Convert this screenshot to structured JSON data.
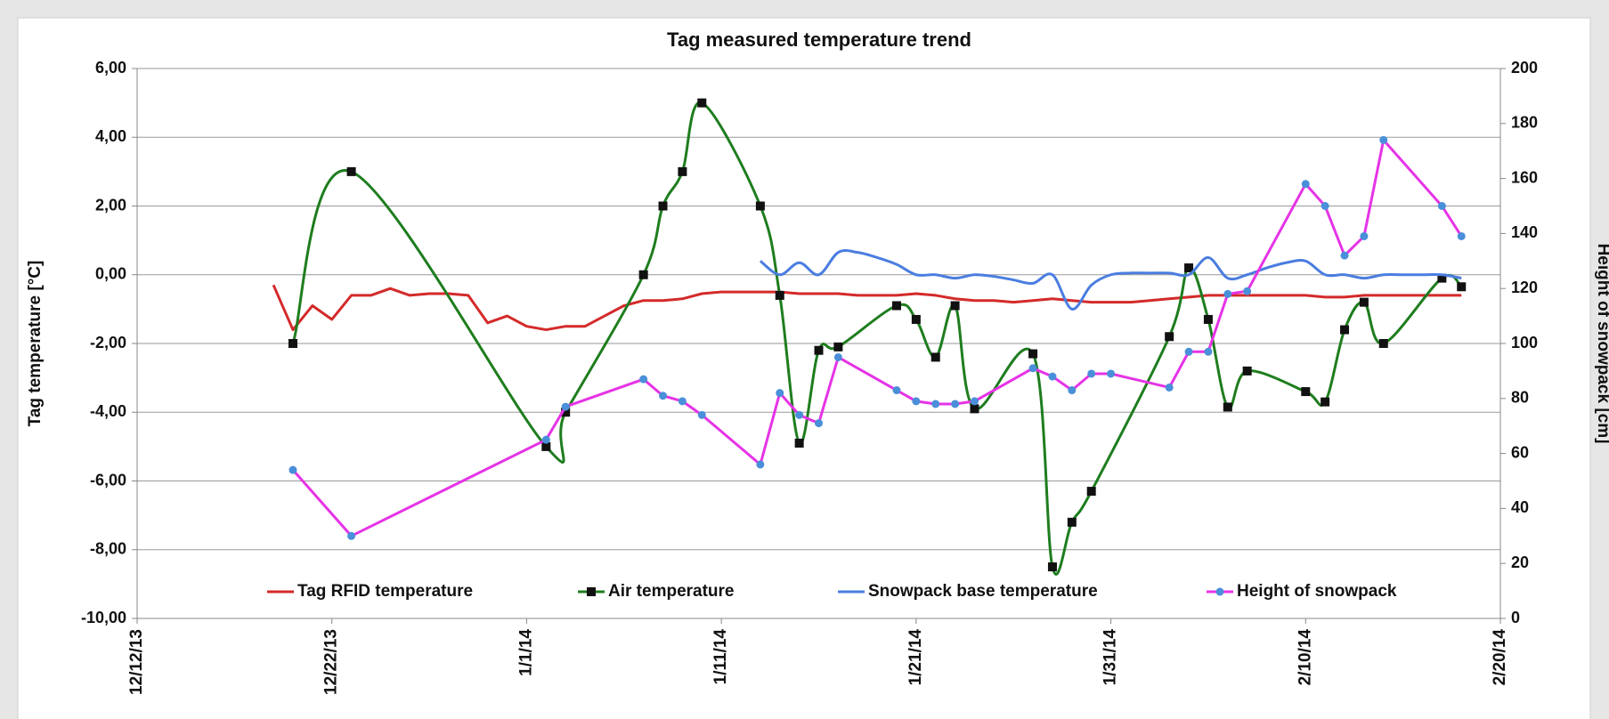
{
  "chart_data": {
    "type": "line",
    "title": "Tag measured temperature trend",
    "y_label": "Tag temperature [°C]",
    "y2_label": "Height of snowpack [cm]",
    "xlim": [
      "12/12/13",
      "2/20/14"
    ],
    "xticks": [
      "12/12/13",
      "12/22/13",
      "1/1/14",
      "1/11/14",
      "1/21/14",
      "1/31/14",
      "2/10/14",
      "2/20/14"
    ],
    "ylim": [
      -10,
      6
    ],
    "yticks": [
      {
        "value": -10,
        "label": "-10,00"
      },
      {
        "value": -8,
        "label": "-8,00"
      },
      {
        "value": -6,
        "label": "-6,00"
      },
      {
        "value": -4,
        "label": "-4,00"
      },
      {
        "value": -2,
        "label": "-2,00"
      },
      {
        "value": 0,
        "label": "0,00"
      },
      {
        "value": 2,
        "label": "2,00"
      },
      {
        "value": 4,
        "label": "4,00"
      },
      {
        "value": 6,
        "label": "6,00"
      }
    ],
    "y2lim": [
      0,
      200
    ],
    "y2ticks": [
      0,
      20,
      40,
      60,
      80,
      100,
      120,
      140,
      160,
      180,
      200
    ],
    "grid": true,
    "legend": "bottom",
    "series": [
      {
        "name": "Tag RFID temperature",
        "color": "#d42a2a",
        "smooth": false,
        "x": [
          "12/19/13",
          "12/20/13",
          "12/21/13",
          "12/22/13",
          "12/23/13",
          "12/24/13",
          "12/25/13",
          "12/26/13",
          "12/27/13",
          "12/28/13",
          "12/29/13",
          "12/30/13",
          "12/31/13",
          "1/1/14",
          "1/2/14",
          "1/3/14",
          "1/4/14",
          "1/5/14",
          "1/6/14",
          "1/7/14",
          "1/8/14",
          "1/9/14",
          "1/10/14",
          "1/11/14",
          "1/12/14",
          "1/13/14",
          "1/14/14",
          "1/15/14",
          "1/16/14",
          "1/17/14",
          "1/18/14",
          "1/19/14",
          "1/20/14",
          "1/21/14",
          "1/22/14",
          "1/23/14",
          "1/24/14",
          "1/25/14",
          "1/26/14",
          "1/27/14",
          "1/28/14",
          "1/29/14",
          "1/30/14",
          "1/31/14",
          "2/1/14",
          "2/2/14",
          "2/3/14",
          "2/4/14",
          "2/5/14",
          "2/6/14",
          "2/7/14",
          "2/8/14",
          "2/9/14",
          "2/10/14",
          "2/11/14",
          "2/12/14",
          "2/13/14",
          "2/14/14",
          "2/15/14",
          "2/16/14",
          "2/17/14",
          "2/18/14"
        ],
        "values": [
          -0.3,
          -1.6,
          -0.9,
          -1.3,
          -0.6,
          -0.6,
          -0.4,
          -0.6,
          -0.55,
          -0.55,
          -0.6,
          -1.4,
          -1.2,
          -1.5,
          -1.6,
          -1.5,
          -1.5,
          -1.2,
          -0.9,
          -0.75,
          -0.75,
          -0.7,
          -0.55,
          -0.5,
          -0.5,
          -0.5,
          -0.5,
          -0.55,
          -0.55,
          -0.55,
          -0.6,
          -0.6,
          -0.6,
          -0.55,
          -0.6,
          -0.7,
          -0.75,
          -0.75,
          -0.8,
          -0.75,
          -0.7,
          -0.75,
          -0.8,
          -0.8,
          -0.8,
          -0.75,
          -0.7,
          -0.65,
          -0.6,
          -0.6,
          -0.6,
          -0.6,
          -0.6,
          -0.6,
          -0.65,
          -0.65,
          -0.6,
          -0.6,
          -0.6,
          -0.6,
          -0.6,
          -0.6
        ]
      },
      {
        "name": "Air temperature",
        "color": "#1e7d1e",
        "smooth": true,
        "marker": "square",
        "marker_color": "#111111",
        "x": [
          "12/20/13",
          "12/23/13",
          "1/2/14",
          "1/3/14",
          "1/7/14",
          "1/8/14",
          "1/9/14",
          "1/10/14",
          "1/13/14",
          "1/14/14",
          "1/15/14",
          "1/16/14",
          "1/17/14",
          "1/20/14",
          "1/21/14",
          "1/22/14",
          "1/23/14",
          "1/24/14",
          "1/27/14",
          "1/28/14",
          "1/29/14",
          "1/30/14",
          "2/3/14",
          "2/4/14",
          "2/5/14",
          "2/6/14",
          "2/7/14",
          "2/10/14",
          "2/11/14",
          "2/12/14",
          "2/13/14",
          "2/14/14",
          "2/17/14",
          "2/18/14"
        ],
        "values": [
          -2.0,
          3.0,
          -5.0,
          -4.0,
          0.0,
          2.0,
          3.0,
          5.0,
          2.0,
          -0.6,
          -4.9,
          -2.2,
          -2.1,
          -0.9,
          -1.3,
          -2.4,
          -0.9,
          -3.9,
          -2.3,
          -8.5,
          -7.2,
          -6.3,
          -1.8,
          0.2,
          -1.3,
          -3.85,
          -2.8,
          -3.4,
          -3.7,
          -1.6,
          -0.8,
          -2.0,
          -0.1,
          -0.35
        ]
      },
      {
        "name": "Snowpack base temperature",
        "color": "#4a7de0",
        "smooth": true,
        "x": [
          "1/13/14",
          "1/14/14",
          "1/15/14",
          "1/16/14",
          "1/17/14",
          "1/18/14",
          "1/19/14",
          "1/20/14",
          "1/21/14",
          "1/22/14",
          "1/23/14",
          "1/24/14",
          "1/25/14",
          "1/26/14",
          "1/27/14",
          "1/28/14",
          "1/29/14",
          "1/30/14",
          "1/31/14",
          "2/1/14",
          "2/2/14",
          "2/3/14",
          "2/4/14",
          "2/5/14",
          "2/6/14",
          "2/7/14",
          "2/8/14",
          "2/9/14",
          "2/10/14",
          "2/11/14",
          "2/12/14",
          "2/13/14",
          "2/14/14",
          "2/15/14",
          "2/16/14",
          "2/17/14",
          "2/18/14"
        ],
        "values": [
          0.4,
          0.0,
          0.35,
          0.0,
          0.65,
          0.65,
          0.5,
          0.3,
          0.0,
          0.0,
          -0.1,
          0.0,
          -0.05,
          -0.15,
          -0.25,
          0.0,
          -1.0,
          -0.3,
          0.0,
          0.05,
          0.05,
          0.05,
          0.0,
          0.5,
          -0.1,
          0.0,
          0.2,
          0.35,
          0.4,
          0.0,
          0.0,
          -0.1,
          0.0,
          0.0,
          0.0,
          0.0,
          -0.1
        ]
      },
      {
        "name": "Height of snowpack",
        "color": "#e633e6",
        "smooth": false,
        "marker": "circle",
        "marker_color": "#4a8fd9",
        "axis": "y2",
        "x": [
          "12/20/13",
          "12/23/13",
          "1/2/14",
          "1/3/14",
          "1/7/14",
          "1/8/14",
          "1/9/14",
          "1/10/14",
          "1/13/14",
          "1/14/14",
          "1/15/14",
          "1/16/14",
          "1/17/14",
          "1/20/14",
          "1/21/14",
          "1/22/14",
          "1/23/14",
          "1/24/14",
          "1/27/14",
          "1/28/14",
          "1/29/14",
          "1/30/14",
          "1/31/14",
          "2/3/14",
          "2/4/14",
          "2/5/14",
          "2/6/14",
          "2/7/14",
          "2/10/14",
          "2/11/14",
          "2/12/14",
          "2/13/14",
          "2/14/14",
          "2/17/14",
          "2/18/14"
        ],
        "values": [
          54,
          30,
          65,
          77,
          87,
          81,
          79,
          74,
          56,
          82,
          74,
          71,
          95,
          83,
          79,
          78,
          78,
          79,
          91,
          88,
          83,
          89,
          89,
          84,
          97,
          97,
          118,
          119,
          158,
          150,
          132,
          139,
          174,
          150,
          139
        ]
      }
    ]
  }
}
